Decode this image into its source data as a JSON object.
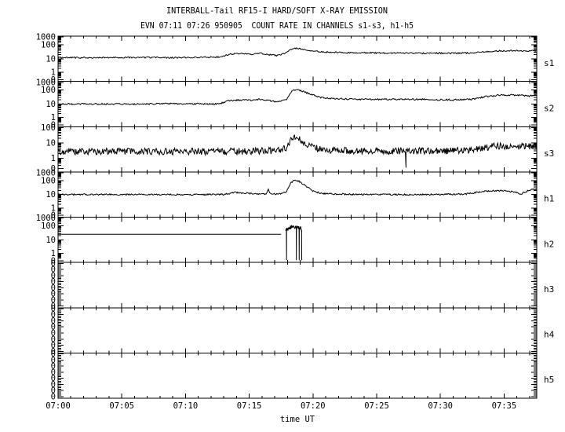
{
  "chart_data": {
    "type": "line",
    "title": "INTERBALL-Tail RF15-I HARD/SOFT X-RAY EMISSION",
    "subtitle": "EVN 07:11 07:26 950905  COUNT RATE IN CHANNELS s1-s3, h1-h5",
    "xlabel": "time UT",
    "x_ticks": [
      "07:00",
      "07:05",
      "07:10",
      "07:15",
      "07:20",
      "07:25",
      "07:30",
      "07:35"
    ],
    "x_start_min": 0,
    "x_end_min": 37.56,
    "x_major_step_min": 5,
    "x_minor_step_min": 1,
    "y_scale": "log",
    "grid": false,
    "line_color": "#000000",
    "background": "#ffffff",
    "panels": [
      {
        "id": "s1",
        "label": "s1",
        "yticks": {
          "labels": [
            "1000",
            "100",
            "10",
            "1",
            "0"
          ],
          "fracs": [
            0.02,
            0.19,
            0.5,
            0.8,
            0.96
          ]
        },
        "anchors": [
          [
            3,
            0.02
          ],
          [
            2,
            0.19
          ],
          [
            1,
            0.5
          ],
          [
            0,
            0.8
          ],
          [
            -1.5,
            0.96
          ]
        ],
        "empty": false,
        "segments": [
          {
            "noise": 0.05,
            "seed": 11,
            "step": 0.065,
            "kp": [
              [
                0,
                12
              ],
              [
                3,
                12
              ],
              [
                6,
                12.5
              ],
              [
                9,
                12
              ],
              [
                12.6,
                13
              ],
              [
                13.6,
                22
              ],
              [
                14.6,
                23
              ],
              [
                15.3,
                21
              ],
              [
                15.8,
                26
              ],
              [
                16.4,
                20
              ],
              [
                17.2,
                17
              ],
              [
                17.8,
                24
              ],
              [
                18.3,
                50
              ],
              [
                18.7,
                55
              ],
              [
                19.2,
                48
              ],
              [
                20,
                36
              ],
              [
                21,
                30
              ],
              [
                22.5,
                27
              ],
              [
                25,
                26
              ],
              [
                28,
                25
              ],
              [
                31,
                25
              ],
              [
                32.5,
                26
              ],
              [
                33.5,
                31
              ],
              [
                34.5,
                36
              ],
              [
                36,
                38
              ],
              [
                36.8,
                36
              ],
              [
                37.56,
                37
              ]
            ]
          }
        ]
      },
      {
        "id": "s2",
        "label": "s2",
        "yticks": {
          "labels": [
            "1000",
            "100",
            "10",
            "1",
            "0"
          ],
          "fracs": [
            0.02,
            0.19,
            0.5,
            0.8,
            0.96
          ]
        },
        "anchors": [
          [
            3,
            0.02
          ],
          [
            2,
            0.19
          ],
          [
            1,
            0.5
          ],
          [
            0,
            0.8
          ],
          [
            -1.5,
            0.96
          ]
        ],
        "empty": false,
        "segments": [
          {
            "noise": 0.055,
            "seed": 23,
            "step": 0.065,
            "kp": [
              [
                0,
                10
              ],
              [
                3,
                10
              ],
              [
                6,
                10
              ],
              [
                9,
                10.5
              ],
              [
                12.6,
                10
              ],
              [
                13.4,
                18
              ],
              [
                14.6,
                19
              ],
              [
                15.3,
                18
              ],
              [
                15.8,
                22
              ],
              [
                16.4,
                18
              ],
              [
                17.2,
                14
              ],
              [
                17.9,
                20
              ],
              [
                18.4,
                95
              ],
              [
                18.8,
                105
              ],
              [
                19.3,
                75
              ],
              [
                19.8,
                50
              ],
              [
                20.6,
                30
              ],
              [
                21.5,
                25
              ],
              [
                23,
                22
              ],
              [
                25,
                21
              ],
              [
                27,
                22
              ],
              [
                29,
                21
              ],
              [
                31,
                20
              ],
              [
                32.5,
                22
              ],
              [
                33.5,
                33
              ],
              [
                34.5,
                42
              ],
              [
                35.5,
                44
              ],
              [
                36.3,
                42
              ],
              [
                36.9,
                37
              ],
              [
                37.56,
                45
              ]
            ]
          }
        ]
      },
      {
        "id": "s3",
        "label": "s3",
        "yticks": {
          "labels": [
            "100",
            "10",
            "1",
            "0"
          ],
          "fracs": [
            0.02,
            0.36,
            0.7,
            0.92
          ]
        },
        "anchors": [
          [
            2,
            0.02
          ],
          [
            1,
            0.36
          ],
          [
            0,
            0.7
          ],
          [
            -1.5,
            0.92
          ]
        ],
        "empty": false,
        "segments": [
          {
            "noise": 0.22,
            "seed": 37,
            "step": 0.05,
            "drops": [
              27.3
            ],
            "kp": [
              [
                0,
                2.8
              ],
              [
                4,
                2.8
              ],
              [
                8,
                2.8
              ],
              [
                12,
                2.8
              ],
              [
                15,
                2.9
              ],
              [
                17,
                3.2
              ],
              [
                17.9,
                4.5
              ],
              [
                18.2,
                14
              ],
              [
                18.5,
                30
              ],
              [
                18.8,
                24
              ],
              [
                19.2,
                12
              ],
              [
                19.8,
                6
              ],
              [
                20.5,
                4
              ],
              [
                21.5,
                3.3
              ],
              [
                24,
                3
              ],
              [
                27,
                3
              ],
              [
                30,
                3
              ],
              [
                32,
                3.2
              ],
              [
                33.3,
                4.5
              ],
              [
                34.3,
                6.5
              ],
              [
                35.3,
                5.5
              ],
              [
                36.3,
                5.8
              ],
              [
                37.56,
                6.5
              ]
            ]
          }
        ]
      },
      {
        "id": "h1",
        "label": "h1",
        "yticks": {
          "labels": [
            "1000",
            "100",
            "10",
            "1",
            "0"
          ],
          "fracs": [
            0.02,
            0.19,
            0.5,
            0.8,
            0.96
          ]
        },
        "anchors": [
          [
            3,
            0.02
          ],
          [
            2,
            0.19
          ],
          [
            1,
            0.5
          ],
          [
            0,
            0.8
          ],
          [
            -1.5,
            0.96
          ]
        ],
        "empty": false,
        "segments": [
          {
            "noise": 0.055,
            "seed": 53,
            "step": 0.06,
            "kp": [
              [
                0,
                10
              ],
              [
                4,
                10
              ],
              [
                8,
                10
              ],
              [
                12,
                10
              ],
              [
                13,
                10
              ],
              [
                13.8,
                14
              ],
              [
                14.8,
                13
              ],
              [
                15.5,
                11
              ],
              [
                16.3,
                11
              ],
              [
                16.5,
                22
              ],
              [
                16.7,
                11
              ],
              [
                17.3,
                11
              ],
              [
                17.9,
                15
              ],
              [
                18.2,
                55
              ],
              [
                18.5,
                115
              ],
              [
                18.8,
                100
              ],
              [
                19.3,
                50
              ],
              [
                19.9,
                20
              ],
              [
                20.6,
                12
              ],
              [
                21.5,
                11
              ],
              [
                24,
                10
              ],
              [
                27,
                10
              ],
              [
                30,
                10
              ],
              [
                32,
                11
              ],
              [
                33,
                15
              ],
              [
                34,
                19
              ],
              [
                35,
                19
              ],
              [
                35.8,
                15
              ],
              [
                36.3,
                11
              ],
              [
                36.9,
                19
              ],
              [
                37.2,
                26
              ],
              [
                37.56,
                23
              ]
            ]
          }
        ]
      },
      {
        "id": "h2",
        "label": "h2",
        "yticks": {
          "labels": [
            "1000",
            "100",
            "10",
            "1",
            "0"
          ],
          "fracs": [
            0.02,
            0.19,
            0.5,
            0.8,
            0.96
          ]
        },
        "anchors": [
          [
            3,
            0.02
          ],
          [
            2,
            0.19
          ],
          [
            1,
            0.5
          ],
          [
            0,
            0.8
          ],
          [
            -1.5,
            0.96
          ]
        ],
        "empty": false,
        "segments": [
          {
            "noise": 0,
            "seed": 1,
            "step": 0.5,
            "kp": [
              [
                0,
                25
              ],
              [
                17.85,
                25
              ]
            ]
          },
          {
            "noise": 0.14,
            "seed": 71,
            "step": 0.02,
            "drops": [
              17.93,
              18.7,
              18.92,
              19.12
            ],
            "kp": [
              [
                17.85,
                45
              ],
              [
                18.0,
                60
              ],
              [
                18.3,
                75
              ],
              [
                18.6,
                80
              ],
              [
                18.85,
                70
              ],
              [
                19.05,
                65
              ],
              [
                19.12,
                58
              ]
            ]
          }
        ]
      },
      {
        "id": "h3",
        "label": "h3",
        "yticks": {
          "labels": [
            "0",
            "0",
            "0",
            "0",
            "0",
            "0",
            "0",
            "0"
          ],
          "fracs": [
            0.02,
            0.155,
            0.29,
            0.425,
            0.56,
            0.695,
            0.83,
            0.965
          ]
        },
        "anchors": [
          [
            3,
            0.02
          ],
          [
            2,
            0.19
          ],
          [
            1,
            0.5
          ],
          [
            0,
            0.8
          ],
          [
            -1.5,
            0.96
          ]
        ],
        "empty": true,
        "segments": []
      },
      {
        "id": "h4",
        "label": "h4",
        "yticks": {
          "labels": [
            "0",
            "0",
            "0",
            "0",
            "0",
            "0",
            "0",
            "0"
          ],
          "fracs": [
            0.02,
            0.155,
            0.29,
            0.425,
            0.56,
            0.695,
            0.83,
            0.965
          ]
        },
        "anchors": [
          [
            3,
            0.02
          ],
          [
            2,
            0.19
          ],
          [
            1,
            0.5
          ],
          [
            0,
            0.8
          ],
          [
            -1.5,
            0.96
          ]
        ],
        "empty": true,
        "segments": []
      },
      {
        "id": "h5",
        "label": "h5",
        "yticks": {
          "labels": [
            "0",
            "0",
            "0",
            "0",
            "0",
            "0",
            "0",
            "0"
          ],
          "fracs": [
            0.02,
            0.155,
            0.29,
            0.425,
            0.56,
            0.695,
            0.83,
            0.965
          ]
        },
        "anchors": [
          [
            3,
            0.02
          ],
          [
            2,
            0.19
          ],
          [
            1,
            0.5
          ],
          [
            0,
            0.8
          ],
          [
            -1.5,
            0.96
          ]
        ],
        "empty": true,
        "segments": []
      }
    ]
  }
}
